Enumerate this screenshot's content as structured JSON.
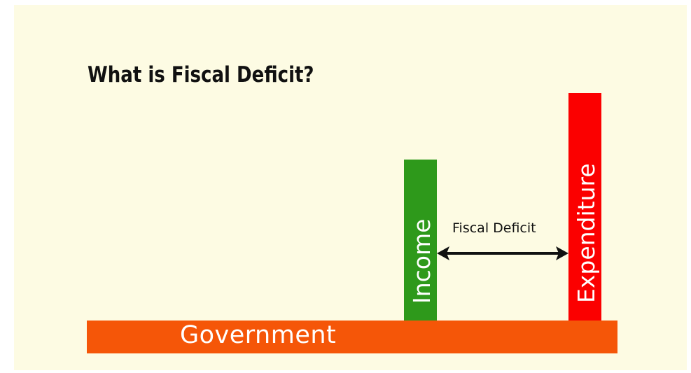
{
  "title": "What is Fiscal Deficit?",
  "base": {
    "label": "Government"
  },
  "income": {
    "label": "Income"
  },
  "expenditure": {
    "label": "Expenditure"
  },
  "gap": {
    "label": "Fiscal Deficit"
  },
  "colors": {
    "background": "#fdfbe3",
    "base": "#f55608",
    "income": "#2e991b",
    "expenditure": "#fb0000",
    "arrow": "#111111"
  },
  "icons": {
    "arrow": "double-headed-arrow"
  }
}
